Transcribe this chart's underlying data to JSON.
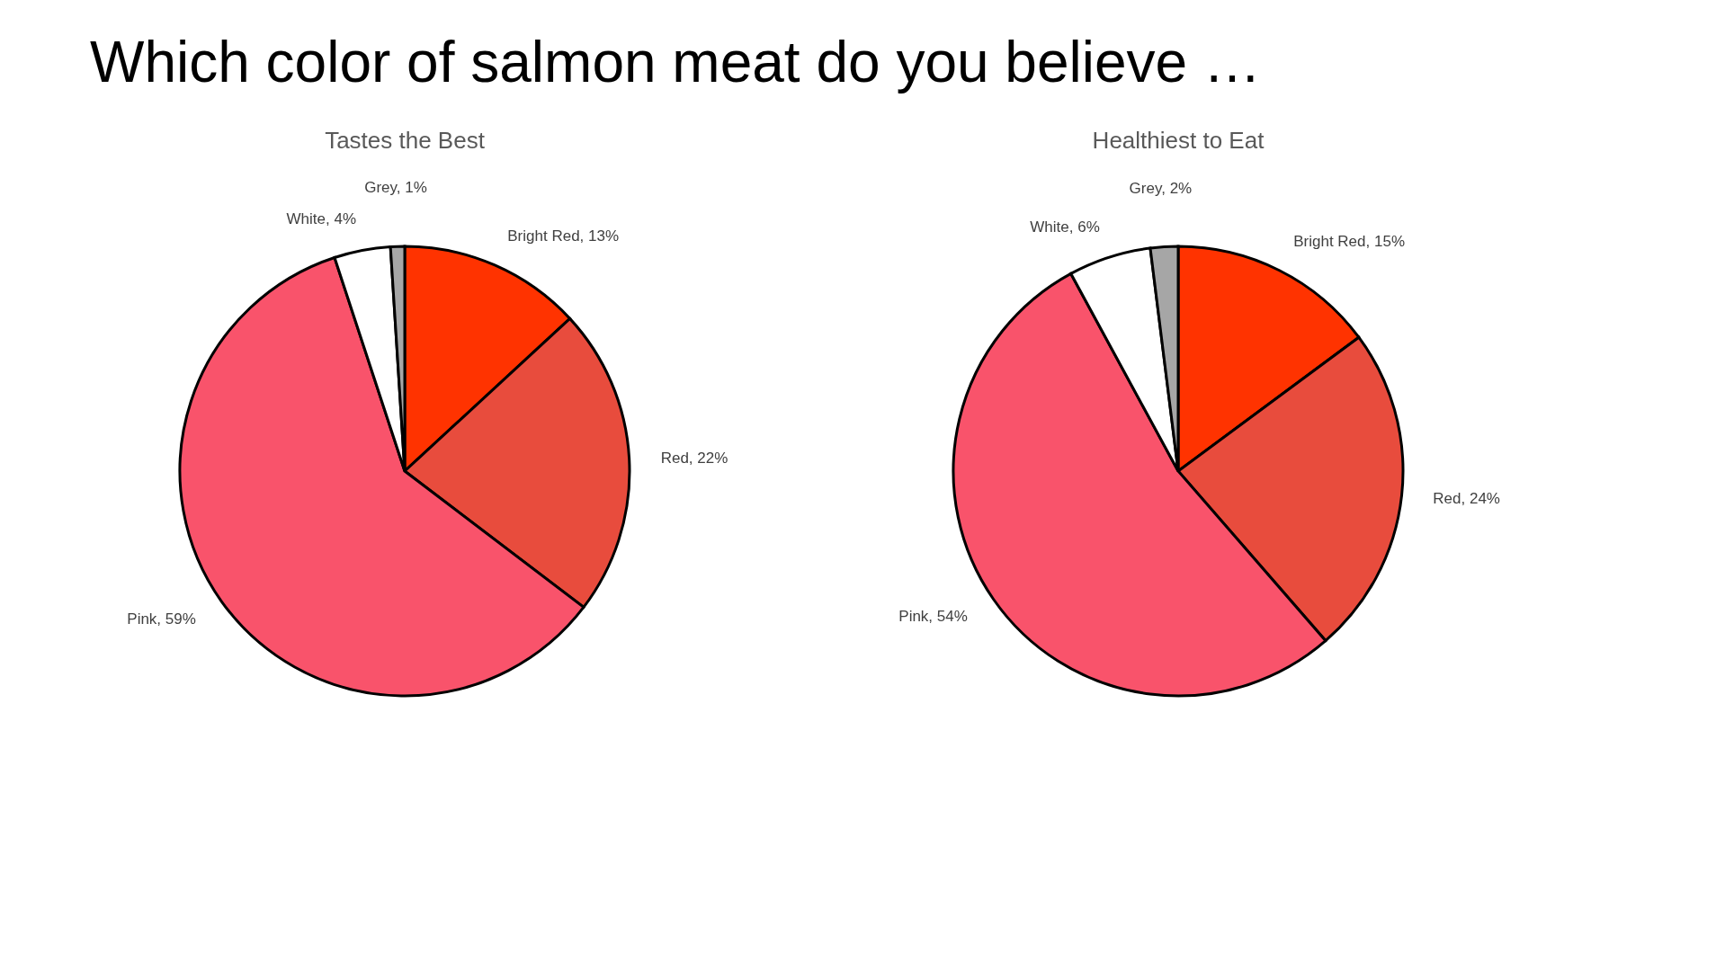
{
  "chart_data": [
    {
      "type": "pie",
      "title": "Tastes the Best",
      "annotations": [
        "Which color of salmon meat do you believe …"
      ],
      "categories": [
        "Bright Red",
        "Red",
        "Pink",
        "White",
        "Grey"
      ],
      "values": [
        13,
        22,
        59,
        4,
        1
      ],
      "colors": [
        "#ff3300",
        "#e84c3d",
        "#f9536b",
        "#ffffff",
        "#a6a6a6"
      ],
      "value_labels": [
        "13%",
        "22%",
        "59%",
        "4%",
        "1%"
      ],
      "legend": false
    },
    {
      "type": "pie",
      "title": "Healthiest to Eat",
      "categories": [
        "Bright Red",
        "Red",
        "Pink",
        "White",
        "Grey"
      ],
      "values": [
        15,
        24,
        54,
        6,
        2
      ],
      "colors": [
        "#ff3300",
        "#e84c3d",
        "#f9536b",
        "#ffffff",
        "#a6a6a6"
      ],
      "value_labels": [
        "15%",
        "24%",
        "54%",
        "6%",
        "2%"
      ],
      "legend": false
    }
  ]
}
